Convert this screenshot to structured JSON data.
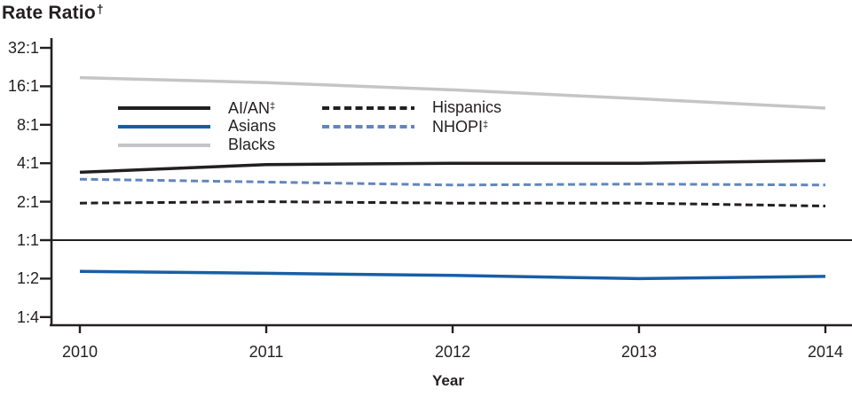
{
  "chart_data": {
    "type": "line",
    "ylabel": "Rate Ratio",
    "ylabel_sup": "†",
    "xlabel": "Year",
    "x": [
      2010,
      2011,
      2012,
      2013,
      2014
    ],
    "y_scale": "log2",
    "y_tick_labels": [
      "32:1",
      "16:1",
      "8:1",
      "4:1",
      "2:1",
      "1:1",
      "1:2",
      "1:4"
    ],
    "y_tick_values": [
      32,
      16,
      8,
      4,
      2,
      1,
      0.5,
      0.25
    ],
    "reference_line_value": 1,
    "grid": false,
    "legend_position": "inside-top-left",
    "series": [
      {
        "name": "AI/AN",
        "sup": "‡",
        "color": "#231f20",
        "style": "solid",
        "values": [
          3.4,
          3.9,
          4.0,
          4.0,
          4.2
        ]
      },
      {
        "name": "Asians",
        "sup": "",
        "color": "#165fa6",
        "style": "solid",
        "values": [
          0.57,
          0.55,
          0.53,
          0.5,
          0.52
        ]
      },
      {
        "name": "Blacks",
        "sup": "",
        "color": "#c5c5c7",
        "style": "solid",
        "values": [
          18.7,
          17.1,
          15.0,
          12.8,
          10.8
        ]
      },
      {
        "name": "Hispanics",
        "sup": "",
        "color": "#231f20",
        "style": "dashed",
        "values": [
          1.95,
          2.0,
          1.95,
          1.95,
          1.85
        ]
      },
      {
        "name": "NHOPI",
        "sup": "‡",
        "color": "#6286bc",
        "style": "dashed",
        "values": [
          3.0,
          2.85,
          2.7,
          2.75,
          2.7
        ]
      }
    ],
    "legend_columns": [
      [
        0,
        1,
        2
      ],
      [
        3,
        4
      ]
    ],
    "axis_color": "#231f20"
  }
}
